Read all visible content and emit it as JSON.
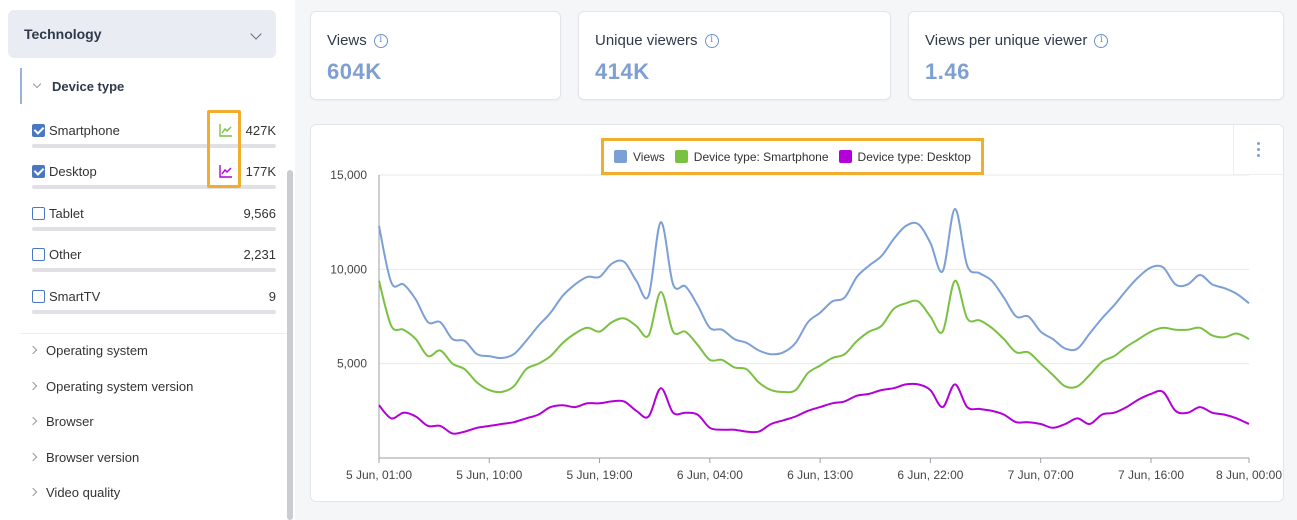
{
  "sidebar": {
    "section_title": "Technology",
    "group_title": "Device type",
    "filters": [
      {
        "name": "Smartphone",
        "value": "427K",
        "checked": true,
        "trend_color": "#7ac143",
        "share": 0.707
      },
      {
        "name": "Desktop",
        "value": "177K",
        "checked": true,
        "trend_color": "#b300d8",
        "share": 0.293
      },
      {
        "name": "Tablet",
        "value": "9,566",
        "checked": false,
        "share": 0.016
      },
      {
        "name": "Other",
        "value": "2,231",
        "checked": false,
        "share": 0.004
      },
      {
        "name": "SmartTV",
        "value": "9",
        "checked": false,
        "share": 0.0
      }
    ],
    "collapsed": [
      "Operating system",
      "Operating system version",
      "Browser",
      "Browser version",
      "Video quality"
    ]
  },
  "kpis": [
    {
      "label": "Views",
      "value": "604K"
    },
    {
      "label": "Unique viewers",
      "value": "414K"
    },
    {
      "label": "Views per unique viewer",
      "value": "1.46"
    }
  ],
  "chart_data": {
    "type": "line",
    "x_ticks": [
      "5 Jun, 01:00",
      "5 Jun, 10:00",
      "5 Jun, 19:00",
      "6 Jun, 04:00",
      "6 Jun, 13:00",
      "6 Jun, 22:00",
      "7 Jun, 07:00",
      "7 Jun, 16:00",
      "8 Jun, 00:00"
    ],
    "y_ticks": [
      "15,000",
      "10,000",
      "5,000"
    ],
    "ylim": [
      0,
      15000
    ],
    "grid": true,
    "legend_position": "top",
    "x": [
      "5 Jun, 01:00",
      "5 Jun, 02:00",
      "5 Jun, 03:00",
      "5 Jun, 04:00",
      "5 Jun, 05:00",
      "5 Jun, 06:00",
      "5 Jun, 07:00",
      "5 Jun, 08:00",
      "5 Jun, 09:00",
      "5 Jun, 10:00",
      "5 Jun, 11:00",
      "5 Jun, 12:00",
      "5 Jun, 13:00",
      "5 Jun, 14:00",
      "5 Jun, 15:00",
      "5 Jun, 16:00",
      "5 Jun, 17:00",
      "5 Jun, 18:00",
      "5 Jun, 19:00",
      "5 Jun, 20:00",
      "5 Jun, 21:00",
      "5 Jun, 22:00",
      "5 Jun, 23:00",
      "6 Jun, 00:00",
      "6 Jun, 01:00",
      "6 Jun, 02:00",
      "6 Jun, 03:00",
      "6 Jun, 04:00",
      "6 Jun, 05:00",
      "6 Jun, 06:00",
      "6 Jun, 07:00",
      "6 Jun, 08:00",
      "6 Jun, 09:00",
      "6 Jun, 10:00",
      "6 Jun, 11:00",
      "6 Jun, 12:00",
      "6 Jun, 13:00",
      "6 Jun, 14:00",
      "6 Jun, 15:00",
      "6 Jun, 16:00",
      "6 Jun, 17:00",
      "6 Jun, 18:00",
      "6 Jun, 19:00",
      "6 Jun, 20:00",
      "6 Jun, 21:00",
      "6 Jun, 22:00",
      "6 Jun, 23:00",
      "7 Jun, 00:00",
      "7 Jun, 01:00",
      "7 Jun, 02:00",
      "7 Jun, 03:00",
      "7 Jun, 04:00",
      "7 Jun, 05:00",
      "7 Jun, 06:00",
      "7 Jun, 07:00",
      "7 Jun, 08:00",
      "7 Jun, 09:00",
      "7 Jun, 10:00",
      "7 Jun, 11:00",
      "7 Jun, 12:00",
      "7 Jun, 13:00",
      "7 Jun, 14:00",
      "7 Jun, 15:00",
      "7 Jun, 16:00",
      "7 Jun, 17:00",
      "7 Jun, 18:00",
      "7 Jun, 19:00",
      "7 Jun, 20:00",
      "7 Jun, 21:00",
      "7 Jun, 22:00",
      "7 Jun, 23:00",
      "8 Jun, 00:00"
    ],
    "series": [
      {
        "name": "Views",
        "color": "#7c9fd6",
        "values": [
          12300,
          9300,
          9200,
          8400,
          7200,
          7200,
          6300,
          6200,
          5500,
          5400,
          5300,
          5500,
          6200,
          7000,
          7700,
          8600,
          9200,
          9600,
          9600,
          10300,
          10400,
          9400,
          8600,
          12500,
          9200,
          9100,
          8100,
          6900,
          6800,
          6300,
          6100,
          5700,
          5500,
          5600,
          6100,
          7200,
          7700,
          8300,
          8500,
          9600,
          10200,
          10700,
          11600,
          12300,
          12400,
          11400,
          9900,
          13200,
          10200,
          9800,
          9400,
          8500,
          7500,
          7500,
          6700,
          6300,
          5800,
          5800,
          6600,
          7400,
          8100,
          8900,
          9600,
          10100,
          10100,
          9200,
          9200,
          9700,
          9200,
          9000,
          8700,
          8200
        ]
      },
      {
        "name": "Device type: Smartphone",
        "color": "#7ac143",
        "values": [
          9400,
          7000,
          6800,
          6300,
          5400,
          5700,
          5000,
          4700,
          4000,
          3600,
          3500,
          3800,
          4700,
          5000,
          5400,
          6100,
          6600,
          6900,
          6700,
          7200,
          7400,
          7000,
          6500,
          8800,
          6700,
          6700,
          6000,
          5200,
          5200,
          4800,
          4700,
          4000,
          3600,
          3500,
          3600,
          4500,
          4900,
          5300,
          5500,
          6200,
          6700,
          7000,
          7900,
          8200,
          8300,
          7500,
          6700,
          9400,
          7400,
          7300,
          6900,
          6300,
          5600,
          5600,
          5000,
          4400,
          3800,
          3800,
          4400,
          5100,
          5400,
          5900,
          6300,
          6700,
          6900,
          6800,
          6800,
          6900,
          6500,
          6400,
          6600,
          6300
        ]
      },
      {
        "name": "Device type: Desktop",
        "color": "#b300d8",
        "values": [
          2800,
          2100,
          2400,
          2200,
          1700,
          1700,
          1300,
          1400,
          1600,
          1700,
          1800,
          1900,
          2100,
          2300,
          2700,
          2800,
          2700,
          2900,
          2900,
          3000,
          3000,
          2500,
          2200,
          3700,
          2400,
          2400,
          2300,
          1600,
          1500,
          1500,
          1400,
          1400,
          1800,
          2000,
          2200,
          2500,
          2700,
          2900,
          3000,
          3300,
          3400,
          3600,
          3700,
          3900,
          3900,
          3600,
          2700,
          3900,
          2700,
          2600,
          2500,
          2300,
          1900,
          1900,
          1800,
          1600,
          1800,
          2100,
          1800,
          2300,
          2400,
          2700,
          3100,
          3400,
          3500,
          2500,
          2400,
          2700,
          2400,
          2300,
          2100,
          1800
        ]
      }
    ]
  },
  "colors": {
    "accent": "#7f9fd3",
    "highlight": "#f0ad2e"
  },
  "icons": {
    "kpi_info": "info-circle-icon",
    "trend": "line-chart-icon",
    "menu": "kebab-menu-icon"
  }
}
